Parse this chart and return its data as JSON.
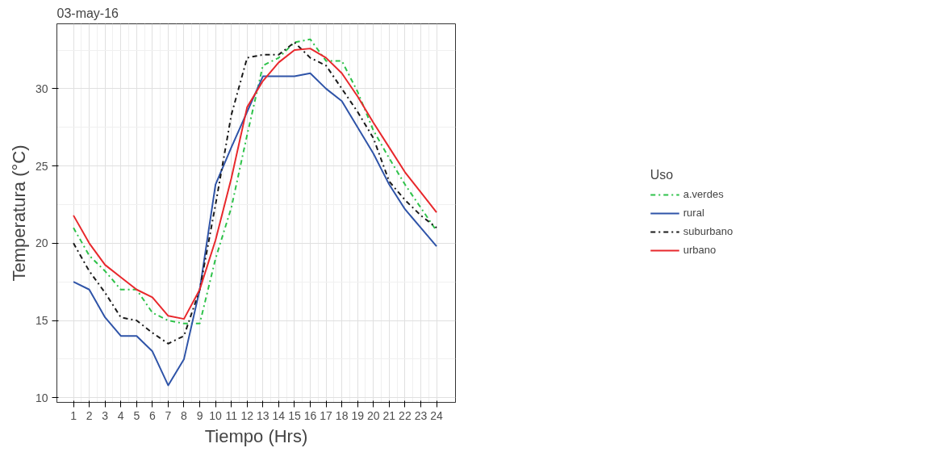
{
  "chart_data": {
    "type": "line",
    "title": "03-may-16",
    "xlabel": "Tiempo (Hrs)",
    "ylabel": "Temperatura (°C)",
    "legend_title": "Uso",
    "x": [
      1,
      2,
      3,
      4,
      5,
      6,
      7,
      8,
      9,
      10,
      11,
      12,
      13,
      14,
      15,
      16,
      17,
      18,
      19,
      20,
      21,
      22,
      23,
      24
    ],
    "series": [
      {
        "name": "a.verdes",
        "color": "#2ec24a",
        "line_style": "dashdot",
        "values": [
          21.0,
          19.2,
          18.2,
          17.0,
          17.0,
          15.5,
          15.0,
          14.8,
          14.8,
          19.0,
          22.3,
          27.0,
          31.5,
          32.0,
          33.0,
          33.2,
          31.8,
          31.8,
          29.8,
          27.3,
          25.5,
          23.8,
          22.3,
          20.8
        ]
      },
      {
        "name": "rural",
        "color": "#2f54a8",
        "line_style": "solid",
        "values": [
          17.5,
          17.0,
          15.2,
          14.0,
          14.0,
          13.0,
          10.8,
          12.5,
          17.0,
          23.8,
          26.2,
          28.5,
          30.8,
          30.8,
          30.8,
          31.0,
          30.0,
          29.2,
          27.5,
          25.8,
          23.8,
          22.2,
          21.0,
          19.8
        ]
      },
      {
        "name": "suburbano",
        "color": "#1a1a1a",
        "line_style": "dashdot",
        "values": [
          20.0,
          18.2,
          16.8,
          15.2,
          15.0,
          14.2,
          13.5,
          14.0,
          17.0,
          22.5,
          28.3,
          32.0,
          32.2,
          32.2,
          33.0,
          32.0,
          31.5,
          30.0,
          28.5,
          26.8,
          24.0,
          22.8,
          21.8,
          21.0
        ]
      },
      {
        "name": "urbano",
        "color": "#e8282c",
        "line_style": "solid",
        "values": [
          21.8,
          20.0,
          18.6,
          17.8,
          17.0,
          16.5,
          15.3,
          15.1,
          17.0,
          20.2,
          24.2,
          28.8,
          30.5,
          31.7,
          32.5,
          32.6,
          32.0,
          31.0,
          29.5,
          27.8,
          26.2,
          24.6,
          23.3,
          22.0
        ]
      }
    ],
    "xlim": [
      -0.05,
      25.2
    ],
    "ylim": [
      9.7,
      34.2
    ],
    "xticks": [
      1,
      2,
      3,
      4,
      5,
      6,
      7,
      8,
      9,
      10,
      11,
      12,
      13,
      14,
      15,
      16,
      17,
      18,
      19,
      20,
      21,
      22,
      23,
      24
    ],
    "yticks": [
      10,
      15,
      20,
      25,
      30
    ],
    "grid": true,
    "legend": "right",
    "marker": "none"
  }
}
